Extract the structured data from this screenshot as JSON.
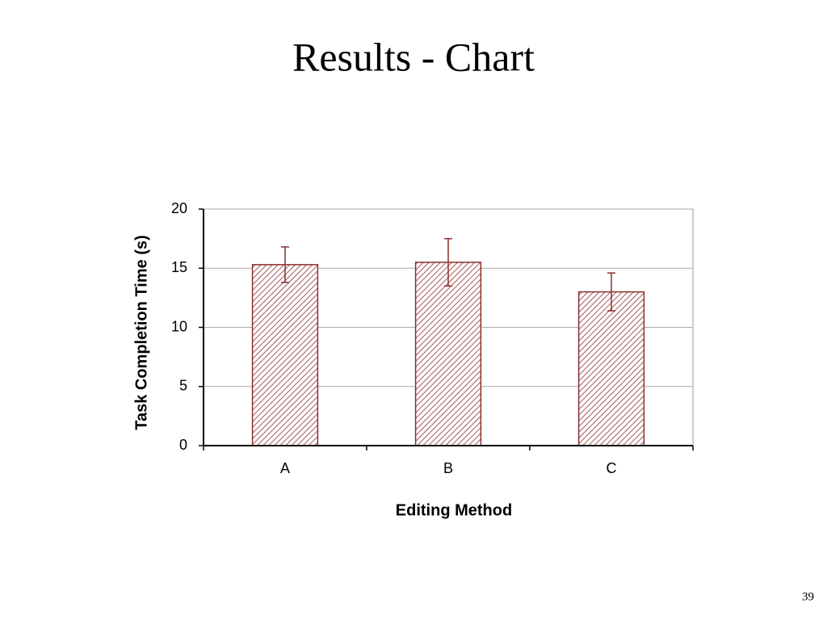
{
  "slide_title": "Results - Chart",
  "page_number": "39",
  "chart_data": {
    "type": "bar",
    "x_label": "Editing Method",
    "y_label": "Task Completion Time (s)",
    "categories": [
      "A",
      "B",
      "C"
    ],
    "values": [
      15.3,
      15.5,
      13.0
    ],
    "errors": [
      1.5,
      2.0,
      1.6
    ],
    "color": "#8b2e2e",
    "ylim": [
      0,
      20
    ],
    "yticks": [
      0,
      5,
      10,
      15,
      20
    ],
    "grid": true
  }
}
